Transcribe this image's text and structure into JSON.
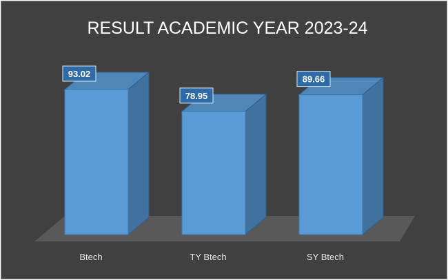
{
  "chart_data": {
    "type": "bar",
    "title": "RESULT ACADEMIC YEAR 2023-24",
    "categories": [
      "Btech",
      "TY Btech",
      "SY Btech"
    ],
    "values": [
      93.02,
      78.95,
      89.66
    ],
    "data_labels": [
      "93.02",
      "78.95",
      "89.66"
    ],
    "style": "3d-column",
    "grid": false,
    "legend": "none",
    "colors": {
      "background": "#404040",
      "bar_front": "#5b9bd5",
      "bar_side": "#41729f",
      "bar_top": "#4f86b8",
      "floor": "#595959",
      "text": "#ffffff"
    }
  }
}
